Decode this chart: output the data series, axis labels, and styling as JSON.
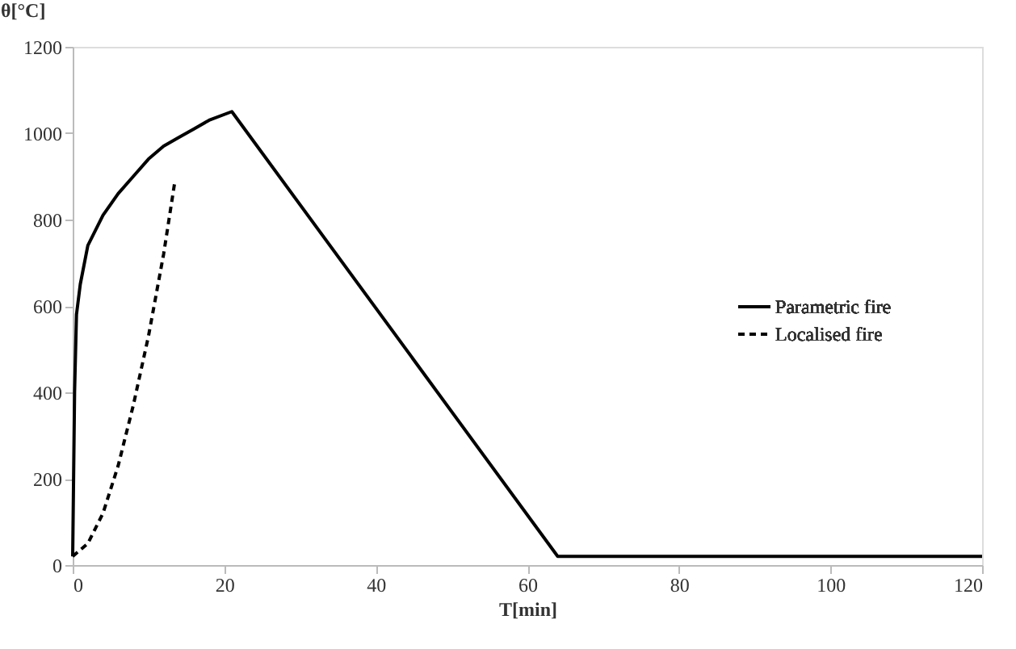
{
  "chart_data": {
    "type": "line",
    "xlabel": "T[min]",
    "ylabel": "θ[°C]",
    "xlim": [
      0,
      120
    ],
    "xticks": [
      0,
      20,
      40,
      60,
      80,
      100,
      120
    ],
    "ylim": [
      0,
      1200
    ],
    "yticks": [
      0,
      200,
      400,
      600,
      800,
      1000,
      1200
    ],
    "grid": false,
    "legend": "right",
    "marker": "none",
    "series": [
      {
        "name": "Parametric fire",
        "color": "#000000",
        "line_style": "solid",
        "x": [
          0,
          0.25,
          0.5,
          1,
          2,
          4,
          6,
          8,
          10,
          12,
          14,
          16,
          18,
          21,
          64,
          120
        ],
        "values": [
          20,
          400,
          580,
          650,
          740,
          810,
          860,
          900,
          940,
          970,
          990,
          1010,
          1030,
          1050,
          20,
          20
        ]
      },
      {
        "name": "Localised fire",
        "color": "#000000",
        "line_style": "dashed",
        "x": [
          0,
          2,
          4,
          6,
          8,
          10,
          12,
          13.5
        ],
        "values": [
          20,
          50,
          120,
          230,
          370,
          530,
          720,
          890
        ]
      }
    ]
  }
}
